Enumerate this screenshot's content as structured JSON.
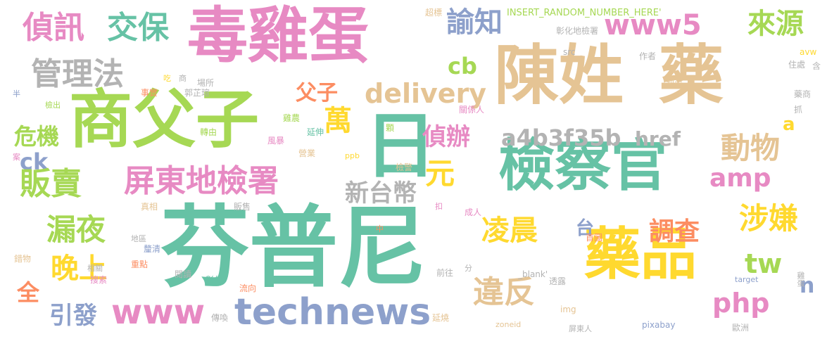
{
  "palette": {
    "teal": "#66c2a5",
    "green": "#a6d854",
    "pink": "#e78ac3",
    "tan": "#e5c494",
    "yellow": "#ffd92f",
    "blue": "#8da0cb",
    "orange": "#fc8d62",
    "gray": "#b3b3b3"
  },
  "words": [
    {
      "key": "fenpuni",
      "text": "芬普尼",
      "color": "#66c2a5"
    },
    {
      "key": "dujidan",
      "text": "毒雞蛋",
      "color": "#e78ac3"
    },
    {
      "key": "chenxing",
      "text": "陳姓",
      "color": "#e5c494"
    },
    {
      "key": "yao",
      "text": "藥",
      "color": "#e5c494"
    },
    {
      "key": "shangfuzi",
      "text": "商父子",
      "color": "#a6d854"
    },
    {
      "key": "jianchaguan",
      "text": "檢察官",
      "color": "#66c2a5"
    },
    {
      "key": "yaopin",
      "text": "藥品",
      "color": "#ffd92f"
    },
    {
      "key": "ri",
      "text": "日",
      "color": "#66c2a5"
    },
    {
      "key": "technews",
      "text": "technews",
      "color": "#8da0cb"
    },
    {
      "key": "www",
      "text": "www",
      "color": "#e78ac3"
    },
    {
      "key": "zhenxun",
      "text": "偵訊",
      "color": "#e78ac3"
    },
    {
      "key": "jiaobao",
      "text": "交保",
      "color": "#66c2a5"
    },
    {
      "key": "guanlifa",
      "text": "管理法",
      "color": "#b3b3b3"
    },
    {
      "key": "yuzhi",
      "text": "諭知",
      "color": "#8da0cb"
    },
    {
      "key": "www5",
      "text": "www5",
      "color": "#e78ac3"
    },
    {
      "key": "laiyuan",
      "text": "來源",
      "color": "#a6d854"
    },
    {
      "key": "delivery",
      "text": "delivery",
      "color": "#e5c494"
    },
    {
      "key": "cb",
      "text": "cb",
      "color": "#a6d854"
    },
    {
      "key": "fuzi",
      "text": "父子",
      "color": "#fc8d62"
    },
    {
      "key": "wan",
      "text": "萬",
      "color": "#ffd92f"
    },
    {
      "key": "weiji",
      "text": "危機",
      "color": "#a6d854"
    },
    {
      "key": "zhenban",
      "text": "偵辦",
      "color": "#e78ac3"
    },
    {
      "key": "a4b3f35b",
      "text": "a4b3f35b",
      "color": "#b3b3b3"
    },
    {
      "key": "dongwu",
      "text": "動物",
      "color": "#e5c494"
    },
    {
      "key": "href",
      "text": "href",
      "color": "#b3b3b3"
    },
    {
      "key": "a",
      "text": "a",
      "color": "#ffd92f"
    },
    {
      "key": "ck",
      "text": "ck",
      "color": "#8da0cb"
    },
    {
      "key": "fanmai",
      "text": "販賣",
      "color": "#a6d854"
    },
    {
      "key": "pingdong",
      "text": "屏東地檢署",
      "color": "#e78ac3"
    },
    {
      "key": "yuan",
      "text": "元",
      "color": "#ffd92f"
    },
    {
      "key": "amp",
      "text": "amp",
      "color": "#e78ac3"
    },
    {
      "key": "xintaibi",
      "text": "新台幣",
      "color": "#b3b3b3"
    },
    {
      "key": "shexian",
      "text": "涉嫌",
      "color": "#ffd92f"
    },
    {
      "key": "louye",
      "text": "漏夜",
      "color": "#a6d854"
    },
    {
      "key": "lingchen",
      "text": "凌晨",
      "color": "#ffd92f"
    },
    {
      "key": "tai",
      "text": "台",
      "color": "#8da0cb"
    },
    {
      "key": "diaocha",
      "text": "調查",
      "color": "#fc8d62"
    },
    {
      "key": "tw",
      "text": "tw",
      "color": "#a6d854"
    },
    {
      "key": "wanshang",
      "text": "晚上",
      "color": "#ffd92f"
    },
    {
      "key": "quan",
      "text": "全",
      "color": "#fc8d62"
    },
    {
      "key": "weifan",
      "text": "違反",
      "color": "#e5c494"
    },
    {
      "key": "n",
      "text": "n",
      "color": "#8da0cb"
    },
    {
      "key": "php",
      "text": "php",
      "color": "#e78ac3"
    },
    {
      "key": "yinfa",
      "text": "引發",
      "color": "#8da0cb"
    },
    {
      "key": "chaobiao",
      "text": "超標",
      "color": "#e5c494"
    },
    {
      "key": "insert",
      "text": "INSERT_RANDOM_NUMBER_HERE'",
      "color": "#a6d854"
    },
    {
      "key": "zhanghua",
      "text": "彰化地檢署",
      "color": "#b3b3b3"
    },
    {
      "key": "src",
      "text": "src",
      "color": "#b3b3b3"
    },
    {
      "key": "avw",
      "text": "avw",
      "color": "#ffd92f"
    },
    {
      "key": "zuozhe",
      "text": "作者",
      "color": "#b3b3b3"
    },
    {
      "key": "zhuchu",
      "text": "住處",
      "color": "#b3b3b3"
    },
    {
      "key": "han",
      "text": "含",
      "color": "#b3b3b3"
    },
    {
      "key": "chi",
      "text": "吃",
      "color": "#ffd92f"
    },
    {
      "key": "shang",
      "text": "商",
      "color": "#b3b3b3"
    },
    {
      "key": "changsuo",
      "text": "場所",
      "color": "#b3b3b3"
    },
    {
      "key": "ban",
      "text": "半",
      "color": "#8da0cb"
    },
    {
      "key": "shishi",
      "text": "事實",
      "color": "#fc8d62"
    },
    {
      "key": "guozhiyuan",
      "text": "郭芷瑄",
      "color": "#b3b3b3"
    },
    {
      "key": "daoan",
      "text": "到案",
      "color": "#e5c494"
    },
    {
      "key": "yaoshang",
      "text": "藥商",
      "color": "#b3b3b3"
    },
    {
      "key": "jianchu",
      "text": "檢出",
      "color": "#a6d854"
    },
    {
      "key": "jinong",
      "text": "雞農",
      "color": "#a6d854"
    },
    {
      "key": "guanxiren",
      "text": "關係人",
      "color": "#e78ac3"
    },
    {
      "key": "zhua",
      "text": "抓",
      "color": "#b3b3b3"
    },
    {
      "key": "zhuanyou",
      "text": "轉由",
      "color": "#a6d854"
    },
    {
      "key": "ke",
      "text": "顆",
      "color": "#a6d854"
    },
    {
      "key": "fengbao",
      "text": "風暴",
      "color": "#e78ac3"
    },
    {
      "key": "yingye",
      "text": "營業",
      "color": "#e5c494"
    },
    {
      "key": "an",
      "text": "案",
      "color": "#e78ac3"
    },
    {
      "key": "yanshen",
      "text": "延伸",
      "color": "#66c2a5"
    },
    {
      "key": "ppb",
      "text": "ppb",
      "color": "#ffd92f"
    },
    {
      "key": "jianjing",
      "text": "檢警",
      "color": "#e5c494"
    },
    {
      "key": "zhenxiang",
      "text": "真相",
      "color": "#e5c494"
    },
    {
      "key": "fanshou",
      "text": "販售",
      "color": "#b3b3b3"
    },
    {
      "key": "kou",
      "text": "扣",
      "color": "#e78ac3"
    },
    {
      "key": "chengren",
      "text": "成人",
      "color": "#e78ac3"
    },
    {
      "key": "diqu",
      "text": "地區",
      "color": "#b3b3b3"
    },
    {
      "key": "zhong",
      "text": "中",
      "color": "#fc8d62"
    },
    {
      "key": "shoutu",
      "text": "首圖",
      "color": "#fc8d62"
    },
    {
      "key": "liqing",
      "text": "釐清",
      "color": "#8da0cb"
    },
    {
      "key": "cuowu",
      "text": "錯物",
      "color": "#e5c494"
    },
    {
      "key": "zhongdian",
      "text": "重點",
      "color": "#fc8d62"
    },
    {
      "key": "xiangguan",
      "text": "相關",
      "color": "#b3b3b3"
    },
    {
      "key": "yuedu",
      "text": "閱讀",
      "color": "#b3b3b3"
    },
    {
      "key": "qianwang",
      "text": "前往",
      "color": "#b3b3b3"
    },
    {
      "key": "fen",
      "text": "分",
      "color": "#b3b3b3"
    },
    {
      "key": "blank",
      "text": "_blank'",
      "color": "#b3b3b3"
    },
    {
      "key": "target",
      "text": "target",
      "color": "#8da0cb"
    },
    {
      "key": "jiedan",
      "text": "雞蛋",
      "color": "#b3b3b3"
    },
    {
      "key": "sousuo",
      "text": "搜索",
      "color": "#e78ac3"
    },
    {
      "key": "zhanghua2",
      "text": "彰化",
      "color": "#66c2a5"
    },
    {
      "key": "liuxiang",
      "text": "流向",
      "color": "#fc8d62"
    },
    {
      "key": "toulu",
      "text": "透露",
      "color": "#b3b3b3"
    },
    {
      "key": "yanshao",
      "text": "延燒",
      "color": "#e5c494"
    },
    {
      "key": "img",
      "text": "img",
      "color": "#e5c494"
    },
    {
      "key": "chuanhuan",
      "text": "傳喚",
      "color": "#b3b3b3"
    },
    {
      "key": "pingdongren",
      "text": "屏東人",
      "color": "#b3b3b3"
    },
    {
      "key": "zoneid",
      "text": "zoneid",
      "color": "#e5c494"
    },
    {
      "key": "pixabay",
      "text": "pixabay",
      "color": "#8da0cb"
    },
    {
      "key": "ouzhou",
      "text": "歐洲",
      "color": "#b3b3b3"
    }
  ]
}
